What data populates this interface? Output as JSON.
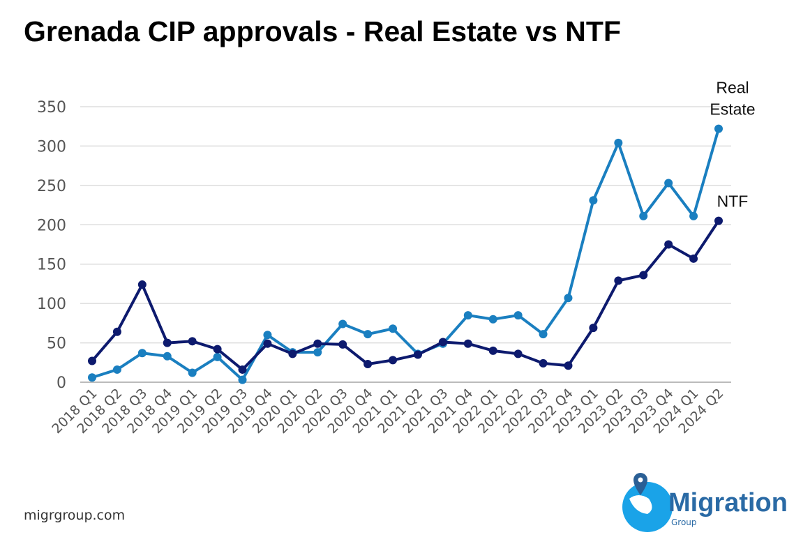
{
  "chart_data": {
    "type": "line",
    "title": "Grenada CIP approvals - Real Estate vs NTF",
    "xlabel": "",
    "ylabel": "",
    "ylim": [
      0,
      350
    ],
    "yticks": [
      0,
      50,
      100,
      150,
      200,
      250,
      300,
      350
    ],
    "grid": true,
    "categories": [
      "2018 Q1",
      "2018 Q2",
      "2018 Q3",
      "2018 Q4",
      "2019 Q1",
      "2019 Q2",
      "2019 Q3",
      "2019 Q4",
      "2020 Q1",
      "2020 Q2",
      "2020 Q3",
      "2020 Q4",
      "2021 Q1",
      "2021 Q2",
      "2021 Q3",
      "2021 Q4",
      "2022 Q1",
      "2022 Q2",
      "2022 Q3",
      "2022 Q4",
      "2023 Q1",
      "2023 Q2",
      "2023 Q3",
      "2023 Q4",
      "2024 Q1",
      "2024 Q2"
    ],
    "series": [
      {
        "name": "Real Estate",
        "label_lines": [
          "Real",
          "Estate"
        ],
        "color": "#1a7fc0",
        "values": [
          6,
          16,
          37,
          33,
          12,
          32,
          3,
          60,
          38,
          38,
          74,
          61,
          68,
          36,
          49,
          85,
          80,
          85,
          61,
          107,
          231,
          304,
          211,
          253,
          211,
          322
        ]
      },
      {
        "name": "NTF",
        "label_lines": [
          "NTF"
        ],
        "color": "#0d1a6e",
        "values": [
          27,
          64,
          124,
          50,
          52,
          42,
          16,
          49,
          36,
          49,
          48,
          23,
          28,
          35,
          51,
          49,
          40,
          36,
          24,
          21,
          69,
          129,
          136,
          175,
          157,
          205
        ]
      }
    ]
  },
  "footer": {
    "website": "migrgroup.com"
  },
  "logo": {
    "name": "Migration",
    "sub": "Group"
  }
}
